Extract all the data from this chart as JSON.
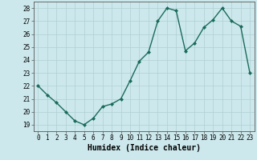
{
  "x": [
    0,
    1,
    2,
    3,
    4,
    5,
    6,
    7,
    8,
    9,
    10,
    11,
    12,
    13,
    14,
    15,
    16,
    17,
    18,
    19,
    20,
    21,
    22,
    23
  ],
  "y": [
    22,
    21.3,
    20.7,
    20,
    19.3,
    19,
    19.5,
    20.4,
    20.6,
    21,
    22.4,
    23.9,
    24.6,
    27,
    28,
    27.8,
    24.7,
    25.3,
    26.5,
    27.1,
    28,
    27,
    26.6,
    23
  ],
  "line_color": "#1a6b5a",
  "marker": "D",
  "markersize": 2.0,
  "linewidth": 1.0,
  "xlabel": "Humidex (Indice chaleur)",
  "xlabel_fontsize": 7,
  "xlim": [
    -0.5,
    23.5
  ],
  "ylim": [
    18.5,
    28.5
  ],
  "yticks": [
    19,
    20,
    21,
    22,
    23,
    24,
    25,
    26,
    27,
    28
  ],
  "xticks": [
    0,
    1,
    2,
    3,
    4,
    5,
    6,
    7,
    8,
    9,
    10,
    11,
    12,
    13,
    14,
    15,
    16,
    17,
    18,
    19,
    20,
    21,
    22,
    23
  ],
  "xtick_labels": [
    "0",
    "1",
    "2",
    "3",
    "4",
    "5",
    "6",
    "7",
    "8",
    "9",
    "10",
    "11",
    "12",
    "13",
    "14",
    "15",
    "16",
    "17",
    "18",
    "19",
    "20",
    "21",
    "22",
    "23"
  ],
  "background_color": "#cce8ec",
  "grid_color": "#b0cfd3",
  "tick_fontsize": 5.5
}
